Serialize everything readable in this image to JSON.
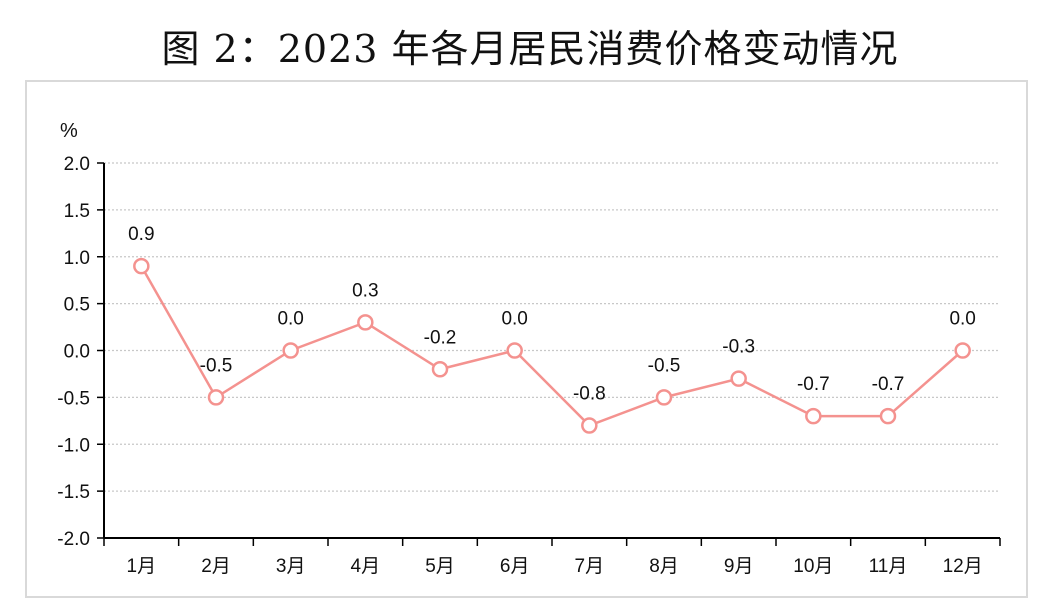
{
  "title": "图 2：2023 年各月居民消费价格变动情况",
  "chart_data": {
    "type": "line",
    "unit_label": "%",
    "categories": [
      "1月",
      "2月",
      "3月",
      "4月",
      "5月",
      "6月",
      "7月",
      "8月",
      "9月",
      "10月",
      "11月",
      "12月"
    ],
    "series": [
      {
        "values": [
          0.9,
          -0.5,
          0.0,
          0.3,
          -0.2,
          0.0,
          -0.8,
          -0.5,
          -0.3,
          -0.7,
          -0.7,
          0.0
        ]
      }
    ],
    "data_labels": [
      "0.9",
      "-0.5",
      "0.0",
      "0.3",
      "-0.2",
      "0.0",
      "-0.8",
      "-0.5",
      "-0.3",
      "-0.7",
      "-0.7",
      "0.0"
    ],
    "ylim": [
      -2.0,
      2.0
    ],
    "yticks": [
      "2.0",
      "1.5",
      "1.0",
      "0.5",
      "0.0",
      "-0.5",
      "-1.0",
      "-1.5",
      "-2.0"
    ],
    "ytick_values": [
      2.0,
      1.5,
      1.0,
      0.5,
      0.0,
      -0.5,
      -1.0,
      -1.5,
      -2.0
    ],
    "grid": true,
    "colors": {
      "line": "#f4928f",
      "marker_fill": "#ffffff",
      "grid": "#c8c8c8"
    }
  }
}
